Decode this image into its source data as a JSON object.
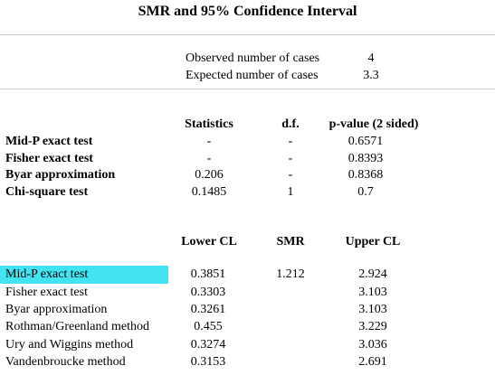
{
  "title": "SMR and 95% Confidence Interval",
  "observed": {
    "label": "Observed number of cases",
    "value": "4"
  },
  "expected": {
    "label": "Expected number of cases",
    "value": "3.3"
  },
  "tests": {
    "headers": {
      "statistics": "Statistics",
      "df": "d.f.",
      "pvalue": "p-value (2 sided)"
    },
    "rows": [
      {
        "name": "Mid-P exact test",
        "statistics": "-",
        "df": "-",
        "pvalue": "0.6571"
      },
      {
        "name": "Fisher exact test",
        "statistics": "-",
        "df": "-",
        "pvalue": "0.8393"
      },
      {
        "name": "Byar approximation",
        "statistics": "0.206",
        "df": "-",
        "pvalue": "0.8368"
      },
      {
        "name": "Chi-square test",
        "statistics": "0.1485",
        "df": "1",
        "pvalue": "0.7"
      }
    ]
  },
  "ci": {
    "headers": {
      "lower": "Lower CL",
      "smr": "SMR",
      "upper": "Upper CL"
    },
    "rows": [
      {
        "name": "Mid-P exact test",
        "lower": "0.3851",
        "smr": "1.212",
        "upper": "2.924",
        "selected": true
      },
      {
        "name": "Fisher exact test",
        "lower": "0.3303",
        "smr": "",
        "upper": "3.103"
      },
      {
        "name": "Byar approximation",
        "lower": "0.3261",
        "smr": "",
        "upper": "3.103"
      },
      {
        "name": "Rothman/Greenland method",
        "lower": "0.455",
        "smr": "",
        "upper": "3.229"
      },
      {
        "name": "Ury and Wiggins method",
        "lower": "0.3274",
        "smr": "",
        "upper": "3.036"
      },
      {
        "name": "Vandenbroucke method",
        "lower": "0.3153",
        "smr": "",
        "upper": "2.691"
      }
    ]
  },
  "colors": {
    "highlight": "#44e3f2",
    "rule": "#c8c8c8"
  }
}
